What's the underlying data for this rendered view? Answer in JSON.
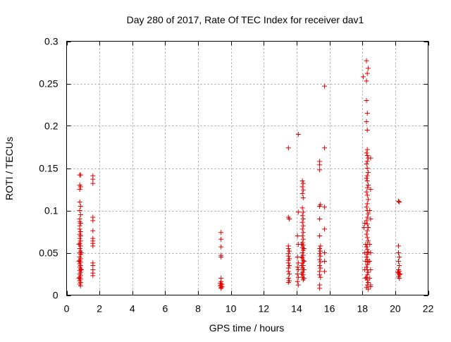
{
  "chart_data": {
    "type": "scatter",
    "title": "Day 280 of 2017, Rate Of TEC Index for receiver dav1",
    "xlabel": "GPS time / hours",
    "ylabel": "ROTI / TECUs",
    "xlim": [
      0,
      22
    ],
    "ylim": [
      0,
      0.3
    ],
    "xticks": [
      0,
      2,
      4,
      6,
      8,
      10,
      12,
      14,
      16,
      18,
      20,
      22
    ],
    "yticks": [
      0,
      0.05,
      0.1,
      0.15,
      0.2,
      0.25,
      0.3
    ],
    "ytick_labels": [
      "0",
      "0.05",
      "0.1",
      "0.15",
      "0.2",
      "0.25",
      "0.3"
    ],
    "grid": true,
    "marker": "+",
    "color": "#e00000",
    "points": [
      [
        0.8,
        0.142
      ],
      [
        0.85,
        0.142
      ],
      [
        0.8,
        0.13
      ],
      [
        0.85,
        0.128
      ],
      [
        0.8,
        0.125
      ],
      [
        0.8,
        0.11
      ],
      [
        0.85,
        0.105
      ],
      [
        0.8,
        0.1
      ],
      [
        0.85,
        0.095
      ],
      [
        0.8,
        0.09
      ],
      [
        0.8,
        0.087
      ],
      [
        0.85,
        0.085
      ],
      [
        0.8,
        0.082
      ],
      [
        0.8,
        0.078
      ],
      [
        0.85,
        0.075
      ],
      [
        0.8,
        0.072
      ],
      [
        0.85,
        0.07
      ],
      [
        0.8,
        0.067
      ],
      [
        0.85,
        0.064
      ],
      [
        0.8,
        0.061
      ],
      [
        0.85,
        0.058
      ],
      [
        0.8,
        0.055
      ],
      [
        0.85,
        0.052
      ],
      [
        0.8,
        0.05
      ],
      [
        0.85,
        0.048
      ],
      [
        0.8,
        0.045
      ],
      [
        0.85,
        0.043
      ],
      [
        0.8,
        0.041
      ],
      [
        0.85,
        0.039
      ],
      [
        0.8,
        0.037
      ],
      [
        0.85,
        0.035
      ],
      [
        0.8,
        0.033
      ],
      [
        0.85,
        0.031
      ],
      [
        0.8,
        0.029
      ],
      [
        0.85,
        0.027
      ],
      [
        0.8,
        0.025
      ],
      [
        0.85,
        0.023
      ],
      [
        0.8,
        0.021
      ],
      [
        0.85,
        0.019
      ],
      [
        0.8,
        0.017
      ],
      [
        0.85,
        0.015
      ],
      [
        0.8,
        0.013
      ],
      [
        0.85,
        0.011
      ],
      [
        0.75,
        0.06
      ],
      [
        0.9,
        0.05
      ],
      [
        0.75,
        0.04
      ],
      [
        0.9,
        0.03
      ],
      [
        0.75,
        0.02
      ],
      [
        1.6,
        0.141
      ],
      [
        1.6,
        0.137
      ],
      [
        1.6,
        0.132
      ],
      [
        1.6,
        0.092
      ],
      [
        1.6,
        0.088
      ],
      [
        1.6,
        0.076
      ],
      [
        1.6,
        0.067
      ],
      [
        1.6,
        0.064
      ],
      [
        1.6,
        0.061
      ],
      [
        1.6,
        0.058
      ],
      [
        1.6,
        0.038
      ],
      [
        1.6,
        0.035
      ],
      [
        1.6,
        0.03
      ],
      [
        1.6,
        0.026
      ],
      [
        1.6,
        0.023
      ],
      [
        9.4,
        0.074
      ],
      [
        9.4,
        0.066
      ],
      [
        9.4,
        0.057
      ],
      [
        9.4,
        0.047
      ],
      [
        9.4,
        0.045
      ],
      [
        9.4,
        0.02
      ],
      [
        9.4,
        0.016
      ],
      [
        9.35,
        0.014
      ],
      [
        9.45,
        0.013
      ],
      [
        9.4,
        0.012
      ],
      [
        9.35,
        0.011
      ],
      [
        9.45,
        0.01
      ],
      [
        9.4,
        0.009
      ],
      [
        9.4,
        0.008
      ],
      [
        13.5,
        0.174
      ],
      [
        13.5,
        0.092
      ],
      [
        13.55,
        0.09
      ],
      [
        13.5,
        0.058
      ],
      [
        13.5,
        0.055
      ],
      [
        13.55,
        0.052
      ],
      [
        13.5,
        0.049
      ],
      [
        13.5,
        0.046
      ],
      [
        13.55,
        0.043
      ],
      [
        13.5,
        0.041
      ],
      [
        13.5,
        0.038
      ],
      [
        13.55,
        0.035
      ],
      [
        13.5,
        0.032
      ],
      [
        13.5,
        0.028
      ],
      [
        13.55,
        0.025
      ],
      [
        13.5,
        0.02
      ],
      [
        13.55,
        0.017
      ],
      [
        13.5,
        0.015
      ],
      [
        14.1,
        0.19
      ],
      [
        14.1,
        0.098
      ],
      [
        14.05,
        0.07
      ],
      [
        14.1,
        0.06
      ],
      [
        14.05,
        0.045
      ],
      [
        14.1,
        0.038
      ],
      [
        14.05,
        0.033
      ],
      [
        14.1,
        0.03
      ],
      [
        14.05,
        0.025
      ],
      [
        14.1,
        0.021
      ],
      [
        14.05,
        0.016
      ],
      [
        14.1,
        0.012
      ],
      [
        14.35,
        0.135
      ],
      [
        14.4,
        0.132
      ],
      [
        14.35,
        0.128
      ],
      [
        14.4,
        0.124
      ],
      [
        14.35,
        0.12
      ],
      [
        14.4,
        0.115
      ],
      [
        14.35,
        0.103
      ],
      [
        14.4,
        0.098
      ],
      [
        14.35,
        0.094
      ],
      [
        14.4,
        0.09
      ],
      [
        14.35,
        0.086
      ],
      [
        14.4,
        0.082
      ],
      [
        14.35,
        0.078
      ],
      [
        14.4,
        0.074
      ],
      [
        14.35,
        0.07
      ],
      [
        14.4,
        0.066
      ],
      [
        14.35,
        0.062
      ],
      [
        14.4,
        0.059
      ],
      [
        14.35,
        0.056
      ],
      [
        14.4,
        0.053
      ],
      [
        14.35,
        0.05
      ],
      [
        14.4,
        0.047
      ],
      [
        14.35,
        0.044
      ],
      [
        14.4,
        0.041
      ],
      [
        14.35,
        0.038
      ],
      [
        14.4,
        0.035
      ],
      [
        14.35,
        0.032
      ],
      [
        14.4,
        0.03
      ],
      [
        14.35,
        0.027
      ],
      [
        14.4,
        0.024
      ],
      [
        14.35,
        0.021
      ],
      [
        14.4,
        0.018
      ],
      [
        14.3,
        0.06
      ],
      [
        14.45,
        0.055
      ],
      [
        14.3,
        0.045
      ],
      [
        14.45,
        0.04
      ],
      [
        14.3,
        0.035
      ],
      [
        14.45,
        0.03
      ],
      [
        14.3,
        0.025
      ],
      [
        14.45,
        0.02
      ],
      [
        15.4,
        0.158
      ],
      [
        15.4,
        0.154
      ],
      [
        15.4,
        0.148
      ],
      [
        15.45,
        0.107
      ],
      [
        15.4,
        0.105
      ],
      [
        15.4,
        0.09
      ],
      [
        15.4,
        0.07
      ],
      [
        15.45,
        0.058
      ],
      [
        15.4,
        0.055
      ],
      [
        15.45,
        0.052
      ],
      [
        15.4,
        0.049
      ],
      [
        15.45,
        0.046
      ],
      [
        15.4,
        0.042
      ],
      [
        15.45,
        0.039
      ],
      [
        15.4,
        0.035
      ],
      [
        15.45,
        0.032
      ],
      [
        15.4,
        0.028
      ],
      [
        15.4,
        0.024
      ],
      [
        15.45,
        0.021
      ],
      [
        15.4,
        0.012
      ],
      [
        15.4,
        0.008
      ],
      [
        15.7,
        0.247
      ],
      [
        15.7,
        0.174
      ],
      [
        15.7,
        0.104
      ],
      [
        15.7,
        0.078
      ],
      [
        15.7,
        0.05
      ],
      [
        15.7,
        0.04
      ],
      [
        15.7,
        0.028
      ],
      [
        18.05,
        0.258
      ],
      [
        18.15,
        0.085
      ],
      [
        18.1,
        0.08
      ],
      [
        18.25,
        0.277
      ],
      [
        18.35,
        0.268
      ],
      [
        18.3,
        0.262
      ],
      [
        18.25,
        0.253
      ],
      [
        18.25,
        0.23
      ],
      [
        18.3,
        0.215
      ],
      [
        18.25,
        0.205
      ],
      [
        18.3,
        0.195
      ],
      [
        18.3,
        0.172
      ],
      [
        18.25,
        0.168
      ],
      [
        18.3,
        0.165
      ],
      [
        18.35,
        0.162
      ],
      [
        18.3,
        0.158
      ],
      [
        18.25,
        0.155
      ],
      [
        18.3,
        0.15
      ],
      [
        18.35,
        0.145
      ],
      [
        18.3,
        0.141
      ],
      [
        18.25,
        0.138
      ],
      [
        18.3,
        0.135
      ],
      [
        18.35,
        0.13
      ],
      [
        18.3,
        0.127
      ],
      [
        18.25,
        0.122
      ],
      [
        18.3,
        0.118
      ],
      [
        18.35,
        0.113
      ],
      [
        18.3,
        0.108
      ],
      [
        18.25,
        0.104
      ],
      [
        18.3,
        0.1
      ],
      [
        18.35,
        0.096
      ],
      [
        18.3,
        0.092
      ],
      [
        18.25,
        0.088
      ],
      [
        18.3,
        0.084
      ],
      [
        18.35,
        0.08
      ],
      [
        18.3,
        0.076
      ],
      [
        18.25,
        0.072
      ],
      [
        18.3,
        0.068
      ],
      [
        18.35,
        0.064
      ],
      [
        18.3,
        0.06
      ],
      [
        18.25,
        0.057
      ],
      [
        18.3,
        0.054
      ],
      [
        18.35,
        0.051
      ],
      [
        18.3,
        0.048
      ],
      [
        18.25,
        0.045
      ],
      [
        18.3,
        0.042
      ],
      [
        18.35,
        0.039
      ],
      [
        18.3,
        0.036
      ],
      [
        18.25,
        0.033
      ],
      [
        18.3,
        0.03
      ],
      [
        18.35,
        0.027
      ],
      [
        18.3,
        0.024
      ],
      [
        18.25,
        0.021
      ],
      [
        18.3,
        0.018
      ],
      [
        18.35,
        0.015
      ],
      [
        18.3,
        0.012
      ],
      [
        18.25,
        0.009
      ],
      [
        18.35,
        0.007
      ],
      [
        18.2,
        0.06
      ],
      [
        18.15,
        0.05
      ],
      [
        18.2,
        0.04
      ],
      [
        18.15,
        0.03
      ],
      [
        18.2,
        0.02
      ],
      [
        18.5,
        0.162
      ],
      [
        18.5,
        0.125
      ],
      [
        18.45,
        0.1
      ],
      [
        18.5,
        0.09
      ],
      [
        18.45,
        0.06
      ],
      [
        18.5,
        0.05
      ],
      [
        18.45,
        0.04
      ],
      [
        18.5,
        0.03
      ],
      [
        18.45,
        0.02
      ],
      [
        18.5,
        0.012
      ],
      [
        18.5,
        0.01
      ],
      [
        20.2,
        0.111
      ],
      [
        20.25,
        0.11
      ],
      [
        20.2,
        0.058
      ],
      [
        20.2,
        0.05
      ],
      [
        20.25,
        0.045
      ],
      [
        20.2,
        0.04
      ],
      [
        20.25,
        0.035
      ],
      [
        20.2,
        0.03
      ],
      [
        20.25,
        0.028
      ],
      [
        20.2,
        0.026
      ],
      [
        20.25,
        0.024
      ],
      [
        20.2,
        0.022
      ],
      [
        20.25,
        0.02
      ],
      [
        20.15,
        0.027
      ],
      [
        20.3,
        0.025
      ]
    ]
  }
}
